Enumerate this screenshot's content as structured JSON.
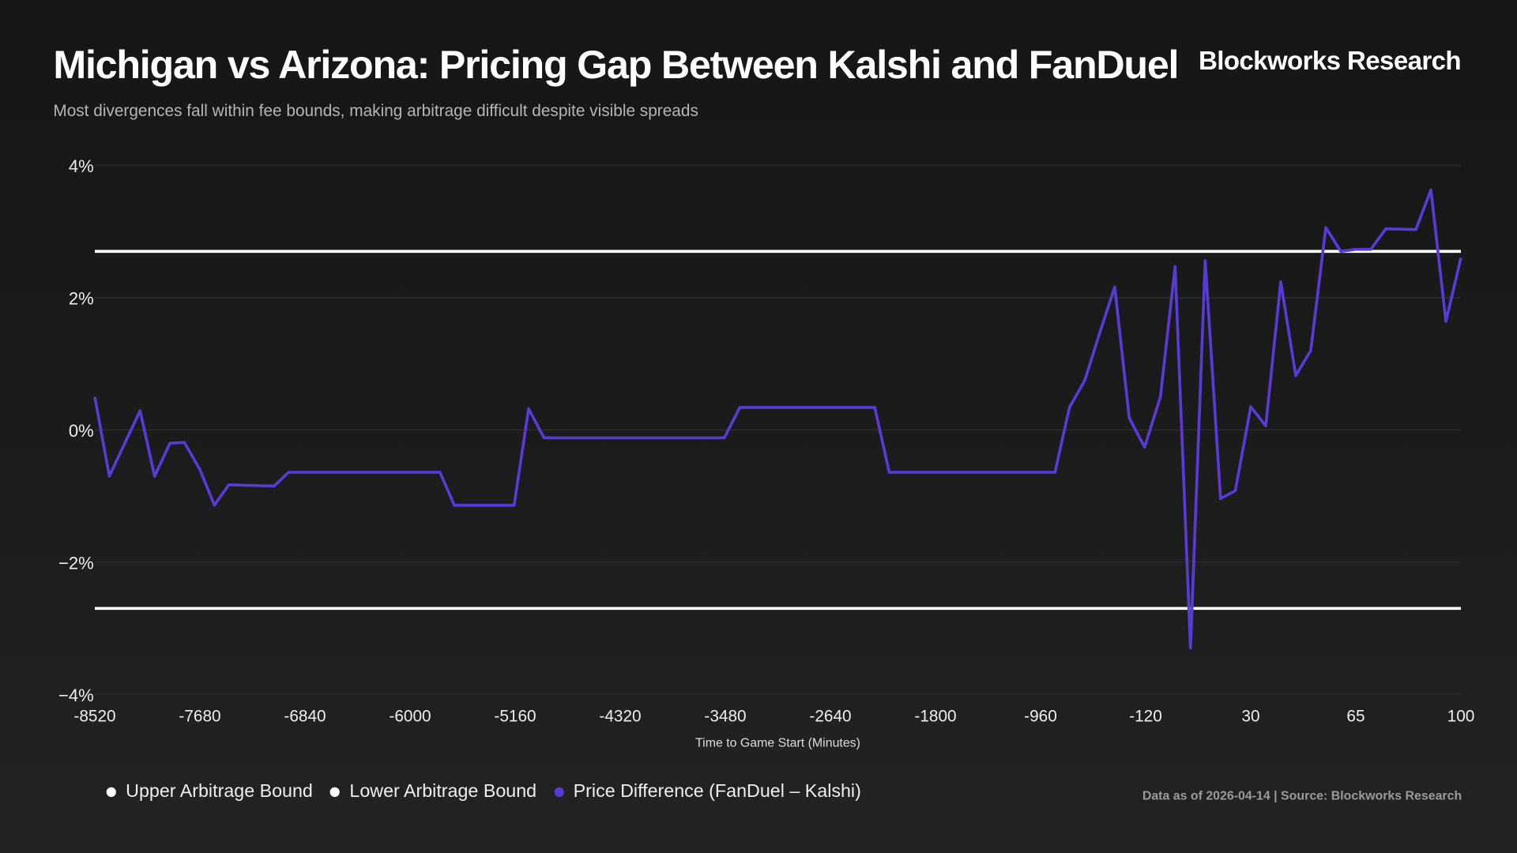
{
  "header": {
    "title": "Michigan vs Arizona: Pricing Gap Between Kalshi and FanDuel",
    "subtitle": "Most divergences fall within fee bounds, making arbitrage difficult despite visible spreads",
    "brand": "Blockworks Research"
  },
  "footer": {
    "source": "Data as of 2026-04-14 | Source: Blockworks Research"
  },
  "colors": {
    "price_difference": "#5a3ad6",
    "bounds": "#ffffff",
    "grid": "#2a2a2a"
  },
  "chart_data": {
    "type": "line",
    "xlabel": "Time to Game Start (Minutes)",
    "ylabel": "",
    "x_ticks": [
      -8520,
      -7680,
      -6840,
      -6000,
      -5160,
      -4320,
      -3480,
      -2640,
      -1800,
      -960,
      -120,
      30,
      65,
      100
    ],
    "x_tick_labels": [
      "-8520",
      "-7680",
      "-6840",
      "-6000",
      "-5160",
      "-4320",
      "-3480",
      "-2640",
      "-1800",
      "-960",
      "-120",
      "30",
      "65",
      "100"
    ],
    "y_ticks": [
      4,
      2,
      0,
      -2,
      -4
    ],
    "y_tick_labels": [
      "4%",
      "2%",
      "0%",
      "−2%",
      "−4%"
    ],
    "ylim": [
      -4,
      4
    ],
    "grid": true,
    "legend_placement": "bottom-left",
    "series": [
      {
        "name": "Upper Arbitrage Bound",
        "color": "#ffffff",
        "constant": 2.7
      },
      {
        "name": "Lower Arbitrage Bound",
        "color": "#ffffff",
        "constant": -2.7
      },
      {
        "name": "Price Difference (FanDuel – Kalshi)",
        "color": "#5a3ad6",
        "points": [
          [
            -8520,
            0.5
          ],
          [
            -8404,
            -0.7
          ],
          [
            -8158,
            0.29
          ],
          [
            -8042,
            -0.7
          ],
          [
            -7919,
            -0.2
          ],
          [
            -7804,
            -0.19
          ],
          [
            -7680,
            -0.6
          ],
          [
            -7564,
            -1.14
          ],
          [
            -7449,
            -0.83
          ],
          [
            -7087,
            -0.85
          ],
          [
            -6971,
            -0.64
          ],
          [
            -5761,
            -0.64
          ],
          [
            -5646,
            -1.14
          ],
          [
            -5168,
            -1.14
          ],
          [
            -5052,
            0.32
          ],
          [
            -4929,
            -0.12
          ],
          [
            -3488,
            -0.12
          ],
          [
            -3364,
            0.34
          ],
          [
            -2285,
            0.34
          ],
          [
            -2170,
            -0.64
          ],
          [
            -844,
            -0.64
          ],
          [
            -729,
            0.34
          ],
          [
            -606,
            0.75
          ],
          [
            -490,
            1.45
          ],
          [
            -367,
            2.16
          ],
          [
            -251,
            0.18
          ],
          [
            -128,
            -0.26
          ],
          [
            -99,
            0.5
          ],
          [
            -78,
            2.47
          ],
          [
            -56,
            -3.3
          ],
          [
            -35,
            2.56
          ],
          [
            -13,
            -1.04
          ],
          [
            8,
            -0.92
          ],
          [
            30,
            0.35
          ],
          [
            35,
            0.06
          ],
          [
            40,
            2.24
          ],
          [
            45,
            0.82
          ],
          [
            50,
            1.2
          ],
          [
            55,
            3.06
          ],
          [
            60,
            2.7
          ],
          [
            65,
            2.73
          ],
          [
            70,
            2.73
          ],
          [
            75,
            3.04
          ],
          [
            85,
            3.03
          ],
          [
            90,
            3.63
          ],
          [
            95,
            1.64
          ],
          [
            100,
            2.6
          ]
        ]
      }
    ]
  }
}
